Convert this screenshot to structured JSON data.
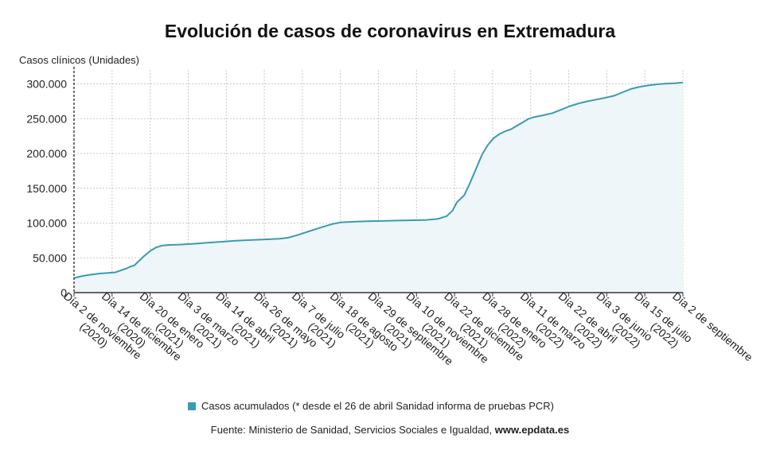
{
  "title": "Evolución de casos de coronavirus en Extremadura",
  "colors": {
    "line": "#3a9bb0",
    "area": "#eef6f9",
    "grid": "#c8c8c8",
    "legend": "#3a9bb0"
  },
  "legend_label": "Casos acumulados (* desde el 26 de abril Sanidad informa de pruebas PCR)",
  "source_prefix": "Fuente: Ministerio de Sanidad, Servicios Sociales e Igualdad, ",
  "source_site": "www.epdata.es",
  "chart_data": {
    "type": "area",
    "title": "Evolución de casos de coronavirus en Extremadura",
    "ylabel": "Casos clínicos (Unidades)",
    "xlabel": "",
    "ylim": [
      0,
      320000
    ],
    "yticks": [
      0,
      50000,
      100000,
      150000,
      200000,
      250000,
      300000
    ],
    "ytick_labels": [
      "0",
      "50.000",
      "100.000",
      "150.000",
      "200.000",
      "250.000",
      "300.000"
    ],
    "xtick_labels": [
      [
        "Día 2 de noviembre",
        "(2020)"
      ],
      [
        "Día 14 de diciembre",
        "(2020)"
      ],
      [
        "Día 20 de enero",
        "(2021)"
      ],
      [
        "Día 3 de marzo",
        "(2021)"
      ],
      [
        "Día 14 de abril",
        "(2021)"
      ],
      [
        "Día 26 de mayo",
        "(2021)"
      ],
      [
        "Día 7 de julio",
        "(2021)"
      ],
      [
        "Día 18 de agosto",
        "(2021)"
      ],
      [
        "Día 29 de septiembre",
        "(2021)"
      ],
      [
        "Día 10 de noviembre",
        "(2021)"
      ],
      [
        "Día 22 de diciembre",
        "(2021)"
      ],
      [
        "Día 28 de enero",
        "(2022)"
      ],
      [
        "Día 11 de marzo",
        "(2022)"
      ],
      [
        "Día 22 de abril",
        "(2022)"
      ],
      [
        "Día 3 de junio",
        "(2022)"
      ],
      [
        "Día 15 de julio",
        "(2022)"
      ],
      [
        "Día 2 de septiembre",
        ""
      ]
    ],
    "grid": true,
    "legend_position": "bottom",
    "series": [
      {
        "name": "Casos acumulados (* desde el 26 de abril Sanidad informa de pruebas PCR)",
        "points": [
          [
            0,
            21000
          ],
          [
            0.3,
            24000
          ],
          [
            0.6,
            26000
          ],
          [
            0.9,
            27500
          ],
          [
            1.2,
            28500
          ],
          [
            1.4,
            29000
          ],
          [
            1.6,
            32000
          ],
          [
            1.8,
            35000
          ],
          [
            1.9,
            37000
          ],
          [
            2.05,
            39000
          ],
          [
            2.2,
            45000
          ],
          [
            2.4,
            53000
          ],
          [
            2.6,
            60000
          ],
          [
            2.8,
            65000
          ],
          [
            3.0,
            67500
          ],
          [
            3.2,
            68500
          ],
          [
            3.6,
            69000
          ],
          [
            4.0,
            70000
          ],
          [
            4.5,
            71500
          ],
          [
            5.0,
            73000
          ],
          [
            5.5,
            74500
          ],
          [
            6.0,
            75500
          ],
          [
            6.5,
            76500
          ],
          [
            7.0,
            77500
          ],
          [
            7.3,
            79000
          ],
          [
            7.6,
            82500
          ],
          [
            8.0,
            88000
          ],
          [
            8.4,
            93500
          ],
          [
            8.8,
            98500
          ],
          [
            9.1,
            101000
          ],
          [
            9.6,
            102000
          ],
          [
            10.0,
            102500
          ],
          [
            10.5,
            103000
          ],
          [
            11.0,
            103500
          ],
          [
            11.5,
            104000
          ],
          [
            12.0,
            104500
          ],
          [
            12.4,
            106000
          ],
          [
            12.7,
            110000
          ],
          [
            12.9,
            118000
          ],
          [
            13.05,
            130000
          ],
          [
            13.3,
            140000
          ],
          [
            13.5,
            158000
          ],
          [
            13.7,
            178000
          ],
          [
            13.9,
            198000
          ],
          [
            14.1,
            212000
          ],
          [
            14.3,
            222000
          ],
          [
            14.5,
            228000
          ],
          [
            14.7,
            232000
          ],
          [
            14.9,
            235000
          ],
          [
            15.1,
            240000
          ],
          [
            15.3,
            245000
          ],
          [
            15.5,
            250000
          ],
          [
            15.7,
            252500
          ],
          [
            16.0,
            255000
          ],
          [
            16.3,
            258000
          ],
          [
            16.6,
            263000
          ],
          [
            16.9,
            268000
          ],
          [
            17.2,
            272000
          ],
          [
            17.5,
            275000
          ],
          [
            17.8,
            277500
          ],
          [
            18.1,
            280000
          ],
          [
            18.4,
            283000
          ],
          [
            18.7,
            288000
          ],
          [
            19.0,
            293000
          ],
          [
            19.3,
            296000
          ],
          [
            19.6,
            298000
          ],
          [
            19.9,
            299500
          ],
          [
            20.2,
            300500
          ],
          [
            20.5,
            301000
          ],
          [
            20.75,
            302000
          ]
        ]
      }
    ],
    "x_range": [
      0,
      20.75
    ]
  }
}
